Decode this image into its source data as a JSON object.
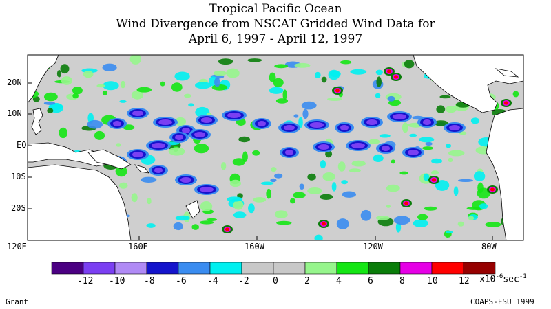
{
  "title": {
    "line1": "Tropical Pacific Ocean",
    "line2": "Wind Divergence from NSCAT Gridded Wind Data for",
    "line3": "April 6, 1997 - April 12, 1997"
  },
  "axes": {
    "lat_labels": [
      "20N",
      "10N",
      "EQ",
      "10S",
      "20S"
    ],
    "lon_labels": [
      "120E",
      "160E",
      "160W",
      "120W",
      "80W"
    ]
  },
  "colorbar": {
    "ticks": [
      "-12",
      "-10",
      "-8",
      "-6",
      "-4",
      "-2",
      "0",
      "2",
      "4",
      "6",
      "8",
      "10",
      "12"
    ],
    "unit_prefix": "x10",
    "unit_exp": "-6",
    "unit_suffix": "sec",
    "unit_suffix_exp": "-1",
    "colors": [
      "#4b0082",
      "#7b3ff2",
      "#b08af5",
      "#1414cc",
      "#3a8cf0",
      "#00f0f0",
      "#c8c8c8",
      "#c8c8c8",
      "#96f58c",
      "#14e614",
      "#0a7d0a",
      "#e600e6",
      "#ff0000",
      "#960000"
    ]
  },
  "footer": {
    "left": "Grant",
    "right": "COAPS-FSU 1999"
  },
  "map_colors": {
    "ocean_neutral": "#cfcfcf",
    "land": "#ffffff",
    "coast": "#000000"
  }
}
